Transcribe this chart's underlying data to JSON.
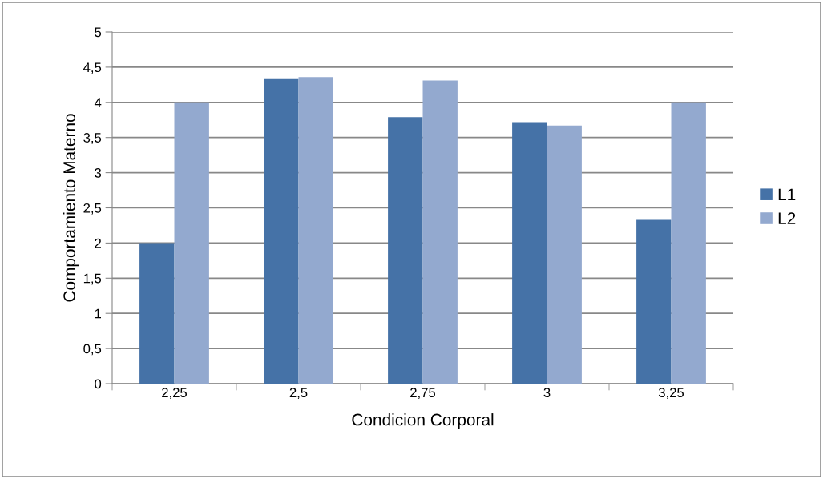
{
  "chart_data": {
    "type": "bar",
    "xlabel": "Condicion Corporal",
    "ylabel": "Comportamiento Materno",
    "categories": [
      "2,25",
      "2,5",
      "2,75",
      "3",
      "3,25"
    ],
    "series": [
      {
        "name": "L1",
        "color": "#4572a7",
        "values": [
          2.0,
          4.33,
          3.79,
          3.72,
          2.33
        ]
      },
      {
        "name": "L2",
        "color": "#93a9cf",
        "values": [
          4.0,
          4.36,
          4.31,
          3.67,
          4.0
        ]
      }
    ],
    "ylim": [
      0,
      5
    ],
    "yticks": [
      0,
      {
        "value": 0.5,
        "label": "0,5"
      },
      1,
      {
        "value": 1.5,
        "label": "1,5"
      },
      2,
      {
        "value": 2.5,
        "label": "2,5"
      },
      3,
      {
        "value": 3.5,
        "label": "3,5"
      },
      4,
      {
        "value": 4.5,
        "label": "4,5"
      },
      5
    ],
    "grid": "y",
    "legend": "right"
  }
}
